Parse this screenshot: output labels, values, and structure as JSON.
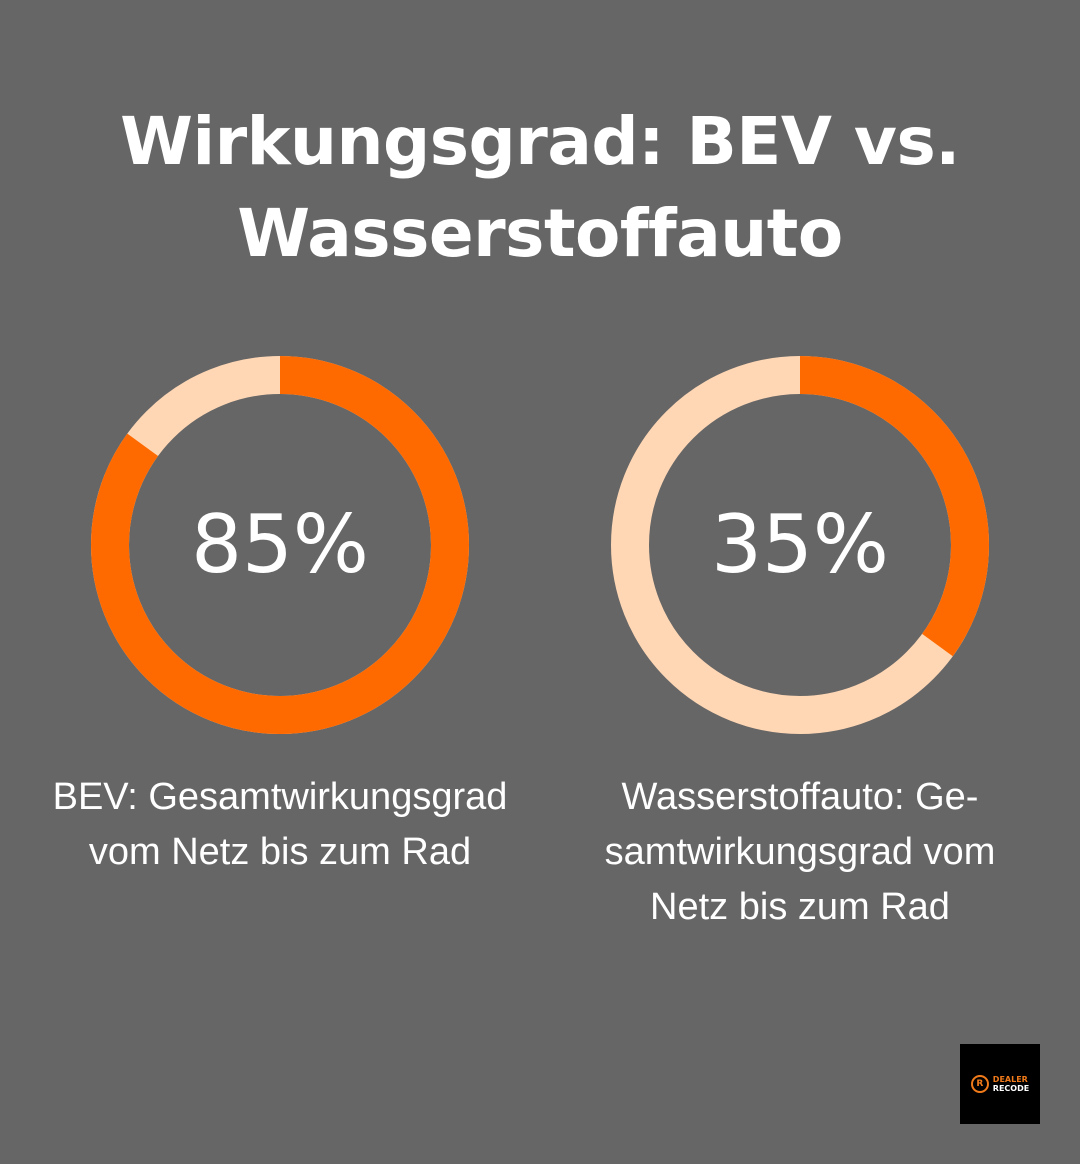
{
  "title": {
    "line1": "Wirkungsgrad: BEV vs.",
    "line2": "Wasserstoffauto"
  },
  "colors": {
    "background": "#666666",
    "accent": "#ff6a00",
    "track": "#ffd7b5",
    "text": "#ffffff"
  },
  "chart_data": [
    {
      "type": "pie",
      "variant": "donut",
      "value": 85,
      "max": 100,
      "label": "85%",
      "caption_lines": [
        "BEV: Gesamtwirkungsgrad",
        "vom Netz bis zum Rad"
      ]
    },
    {
      "type": "pie",
      "variant": "donut",
      "value": 35,
      "max": 100,
      "label": "35%",
      "caption_lines": [
        "Wasserstoffauto: Ge-",
        "samtwirkungsgrad vom",
        "Netz bis zum Rad"
      ]
    }
  ],
  "logo": {
    "mark": "R",
    "line1": "DEALER",
    "line2": "RECODE"
  }
}
